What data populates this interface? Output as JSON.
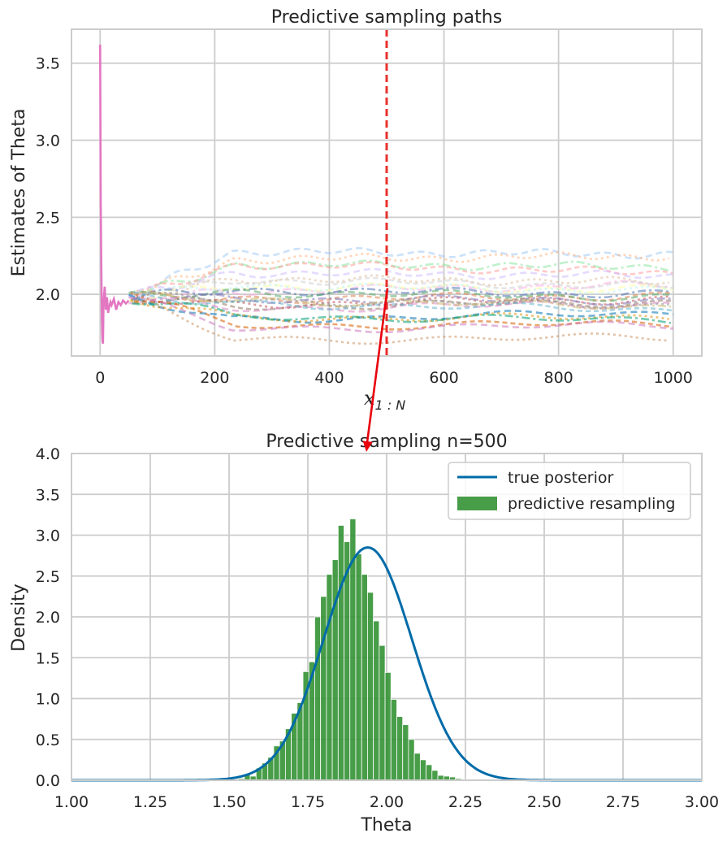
{
  "colors": {
    "grid": "#cccccc",
    "axes_border": "#cccccc",
    "path_start": "#e377c2",
    "vline": "#e8322c",
    "arrow": "#e8000b",
    "hist": "#2f8f2f",
    "posterior": "#006ba8"
  },
  "chart_data": [
    {
      "type": "line",
      "title": "Predictive sampling paths",
      "xlabel": "x_{1:N}",
      "xlabel_main": "x",
      "xlabel_sub": "1 : N",
      "ylabel": "Estimates of Theta",
      "xlim": [
        -50,
        1050
      ],
      "ylim": [
        1.6,
        3.72
      ],
      "xticks": [
        0,
        200,
        400,
        600,
        800,
        1000
      ],
      "xtick_labels": [
        "0",
        "200",
        "400",
        "600",
        "800",
        "1000"
      ],
      "yticks": [
        2.0,
        2.5,
        3.0,
        3.5
      ],
      "ytick_labels": [
        "2.0",
        "2.5",
        "3.0",
        "3.5"
      ],
      "grid": true,
      "vline_x": 500,
      "observed_path": {
        "x": [
          0,
          1,
          2,
          3,
          4,
          5,
          6,
          8,
          10,
          12,
          14,
          16,
          18,
          20,
          24,
          28,
          32,
          36,
          40,
          45,
          50
        ],
        "y": [
          3.62,
          2.6,
          2.2,
          1.85,
          1.7,
          1.68,
          1.95,
          2.05,
          1.9,
          1.98,
          1.88,
          1.92,
          1.95,
          1.93,
          1.97,
          1.9,
          1.95,
          1.93,
          1.96,
          1.94,
          1.96
        ]
      },
      "observed_continuation": {
        "x": [
          50,
          100,
          200,
          300,
          400,
          500
        ],
        "y": [
          1.96,
          1.99,
          2.01,
          1.99,
          2.02,
          2.04
        ]
      },
      "predictive_path_finals": [
        2.26,
        2.25,
        2.18,
        2.14,
        2.12,
        2.08,
        2.06,
        2.05,
        2.03,
        2.02,
        2.0,
        1.99,
        1.98,
        1.97,
        1.96,
        1.95,
        1.94,
        1.93,
        1.92,
        1.9,
        1.88,
        1.85,
        1.83,
        1.81,
        1.8,
        1.72
      ],
      "path_colors": [
        "#a1c9f4",
        "#ffb482",
        "#8de5a1",
        "#ff9f9b",
        "#d0bbff",
        "#debb9b",
        "#fab0e4",
        "#cfcfcf",
        "#fffea3",
        "#b9f2f0",
        "#4c72b0",
        "#dd8452",
        "#55a868",
        "#c44e52",
        "#8172b3",
        "#937860",
        "#da8bc3",
        "#8c8c8c",
        "#ccb974",
        "#64b5cd",
        "#0173b2",
        "#de8f05",
        "#029e73",
        "#d55e00",
        "#cc78bc",
        "#ca9161"
      ]
    },
    {
      "type": "histogram",
      "title": "Predictive sampling n=500",
      "xlabel": "Theta",
      "ylabel": "Density",
      "xlim": [
        1.0,
        3.0
      ],
      "ylim": [
        0.0,
        4.0
      ],
      "xticks": [
        1.0,
        1.25,
        1.5,
        1.75,
        2.0,
        2.25,
        2.5,
        2.75,
        3.0
      ],
      "xtick_labels": [
        "1.00",
        "1.25",
        "1.50",
        "1.75",
        "2.00",
        "2.25",
        "2.50",
        "2.75",
        "3.00"
      ],
      "yticks": [
        0.0,
        0.5,
        1.0,
        1.5,
        2.0,
        2.5,
        3.0,
        3.5,
        4.0
      ],
      "ytick_labels": [
        "0.0",
        "0.5",
        "1.0",
        "1.5",
        "2.0",
        "2.5",
        "3.0",
        "3.5",
        "4.0"
      ],
      "grid": true,
      "legend_position": "top-right",
      "series": [
        {
          "name": "true posterior",
          "kind": "line",
          "mean": 1.94,
          "sd": 0.14
        },
        {
          "name": "predictive resampling",
          "kind": "bars"
        }
      ],
      "bin_start": 1.53,
      "bin_width": 0.0186,
      "density": [
        0.02,
        0.07,
        0.05,
        0.15,
        0.21,
        0.28,
        0.42,
        0.48,
        0.63,
        0.82,
        0.95,
        1.33,
        1.45,
        2.0,
        2.25,
        2.52,
        2.7,
        3.12,
        2.92,
        3.2,
        2.77,
        2.52,
        2.3,
        1.95,
        1.65,
        1.32,
        0.99,
        0.78,
        0.68,
        0.5,
        0.33,
        0.25,
        0.19,
        0.12,
        0.06,
        0.05,
        0.04,
        0.02,
        0.01,
        0.01
      ]
    }
  ]
}
